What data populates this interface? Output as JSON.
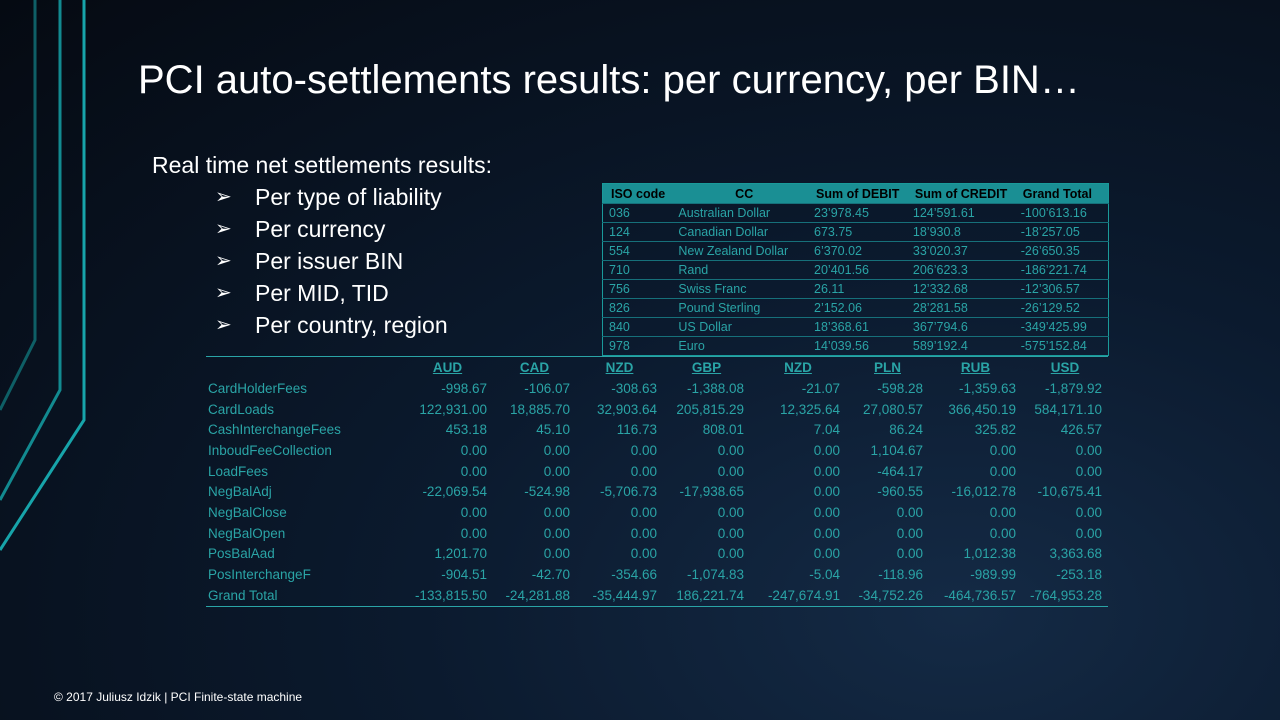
{
  "slide": {
    "title": "PCI auto-settlements results: per currency, per BIN…",
    "subtitle": "Real time net settlements  results:",
    "bullets": [
      "Per type of liability",
      "Per currency",
      "Per issuer BIN",
      "Per MID, TID",
      "Per country, region"
    ],
    "bullet_icon": "arrow-bullet-icon",
    "footer": "© 2017 Juliusz  Idzik | PCI Finite-state machine"
  },
  "colors": {
    "accent": "#1a8f94",
    "text_teal": "#2aa4a6",
    "background": "#0b1a2e"
  },
  "iso_table": {
    "headers": [
      "ISO code",
      "CC",
      "Sum of DEBIT",
      "Sum of CREDIT",
      "Grand Total"
    ],
    "rows": [
      [
        "036",
        "Australian Dollar",
        "23’978.45",
        "124’591.61",
        "-100’613.16"
      ],
      [
        "124",
        "Canadian Dollar",
        "673.75",
        "18’930.8",
        "-18’257.05"
      ],
      [
        "554",
        "New Zealand Dollar",
        "6’370.02",
        "33’020.37",
        "-26’650.35"
      ],
      [
        "710",
        "Rand",
        "20’401.56",
        "206’623.3",
        "-186’221.74"
      ],
      [
        "756",
        "Swiss Franc",
        "26.11",
        "12’332.68",
        "-12’306.57"
      ],
      [
        "826",
        "Pound Sterling",
        "2’152.06",
        "28’281.58",
        "-26’129.52"
      ],
      [
        "840",
        "US Dollar",
        "18’368.61",
        "367’794.6",
        "-349’425.99"
      ],
      [
        "978",
        "Euro",
        "14’039.56",
        "589’192.4",
        "-575’152.84"
      ]
    ]
  },
  "pivot": {
    "headers": [
      "",
      "AUD",
      "CAD",
      "NZD",
      "GBP",
      "NZD",
      "PLN",
      "RUB",
      "USD"
    ],
    "rows": [
      [
        "CardHolderFees",
        "-998.67",
        "-106.07",
        "-308.63",
        "-1,388.08",
        "-21.07",
        "-598.28",
        "-1,359.63",
        "-1,879.92"
      ],
      [
        "CardLoads",
        "122,931.00",
        "18,885.70",
        "32,903.64",
        "205,815.29",
        "12,325.64",
        "27,080.57",
        "366,450.19",
        "584,171.10"
      ],
      [
        "CashInterchangeFees",
        "453.18",
        "45.10",
        "116.73",
        "808.01",
        "7.04",
        "86.24",
        "325.82",
        "426.57"
      ],
      [
        "InboudFeeCollection",
        "0.00",
        "0.00",
        "0.00",
        "0.00",
        "0.00",
        "1,104.67",
        "0.00",
        "0.00"
      ],
      [
        "LoadFees",
        "0.00",
        "0.00",
        "0.00",
        "0.00",
        "0.00",
        "-464.17",
        "0.00",
        "0.00"
      ],
      [
        "NegBalAdj",
        "-22,069.54",
        "-524.98",
        "-5,706.73",
        "-17,938.65",
        "0.00",
        "-960.55",
        "-16,012.78",
        "-10,675.41"
      ],
      [
        "NegBalClose",
        "0.00",
        "0.00",
        "0.00",
        "0.00",
        "0.00",
        "0.00",
        "0.00",
        "0.00"
      ],
      [
        "NegBalOpen",
        "0.00",
        "0.00",
        "0.00",
        "0.00",
        "0.00",
        "0.00",
        "0.00",
        "0.00"
      ],
      [
        "PosBalAad",
        "1,201.70",
        "0.00",
        "0.00",
        "0.00",
        "0.00",
        "0.00",
        "1,012.38",
        "3,363.68"
      ],
      [
        "PosInterchangeF",
        "-904.51",
        "-42.70",
        "-354.66",
        "-1,074.83",
        "-5.04",
        "-118.96",
        "-989.99",
        "-253.18"
      ],
      [
        "Grand Total",
        "-133,815.50",
        "-24,281.88",
        "-35,444.97",
        "186,221.74",
        "-247,674.91",
        "-34,752.26",
        "-464,736.57",
        "-764,953.28"
      ]
    ]
  }
}
